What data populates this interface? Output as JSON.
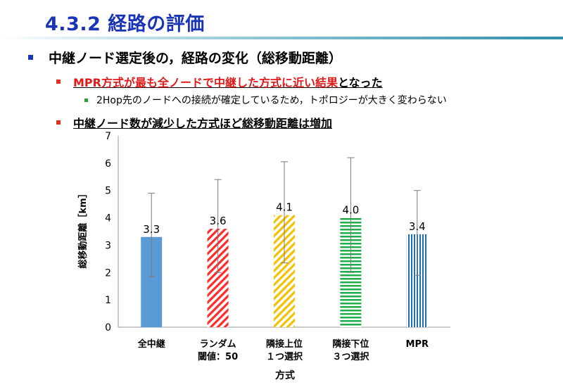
{
  "title": "4.3.2 経路の評価",
  "bullets": {
    "l1": "中継ノード選定後の，経路の変化（総移動距離）",
    "l2a_red": "MPR方式が最も全ノードで中継した方式に近い結果",
    "l2a_rest": "となった",
    "l3": "2Hop先のノードへの接続が確定しているため，トポロジーが大きく変わらない",
    "l2b": "中継ノード数が減少した方式ほど総移動距離は増加"
  },
  "colors": {
    "title": "#1a34b8",
    "bullet_l1": "#1a34b8",
    "bullet_l2": "#e03020",
    "bullet_l3": "#2aa030",
    "highlight_text": "#e21a1a"
  },
  "chart_data": {
    "type": "bar",
    "categories": [
      [
        "全中継"
      ],
      [
        "ランダム",
        "閾値：50"
      ],
      [
        "隣接上位",
        "１つ選択"
      ],
      [
        "隣接下位",
        "３つ選択"
      ],
      [
        "MPR"
      ]
    ],
    "values": [
      3.3,
      3.6,
      4.1,
      4.0,
      3.4
    ],
    "error_low": [
      1.85,
      2.0,
      2.35,
      2.0,
      1.9
    ],
    "error_high": [
      4.9,
      5.4,
      6.05,
      6.2,
      5.0
    ],
    "data_labels": [
      "3.3",
      "3.6",
      "4.1",
      "4.0",
      "3.4"
    ],
    "patterns": [
      "solid",
      "diagonal",
      "diagonal",
      "horizontal",
      "vertical"
    ],
    "colors": [
      "#5b9bd5",
      "#ff2a2a",
      "#f2c200",
      "#1fae4a",
      "#1f6fb8"
    ],
    "xlabel": "方式",
    "ylabel": "総移動距離［km］",
    "ylim": [
      0,
      7
    ],
    "yticks": [
      "0",
      "1",
      "2",
      "3",
      "4",
      "5",
      "6",
      "7"
    ],
    "grid": false
  }
}
